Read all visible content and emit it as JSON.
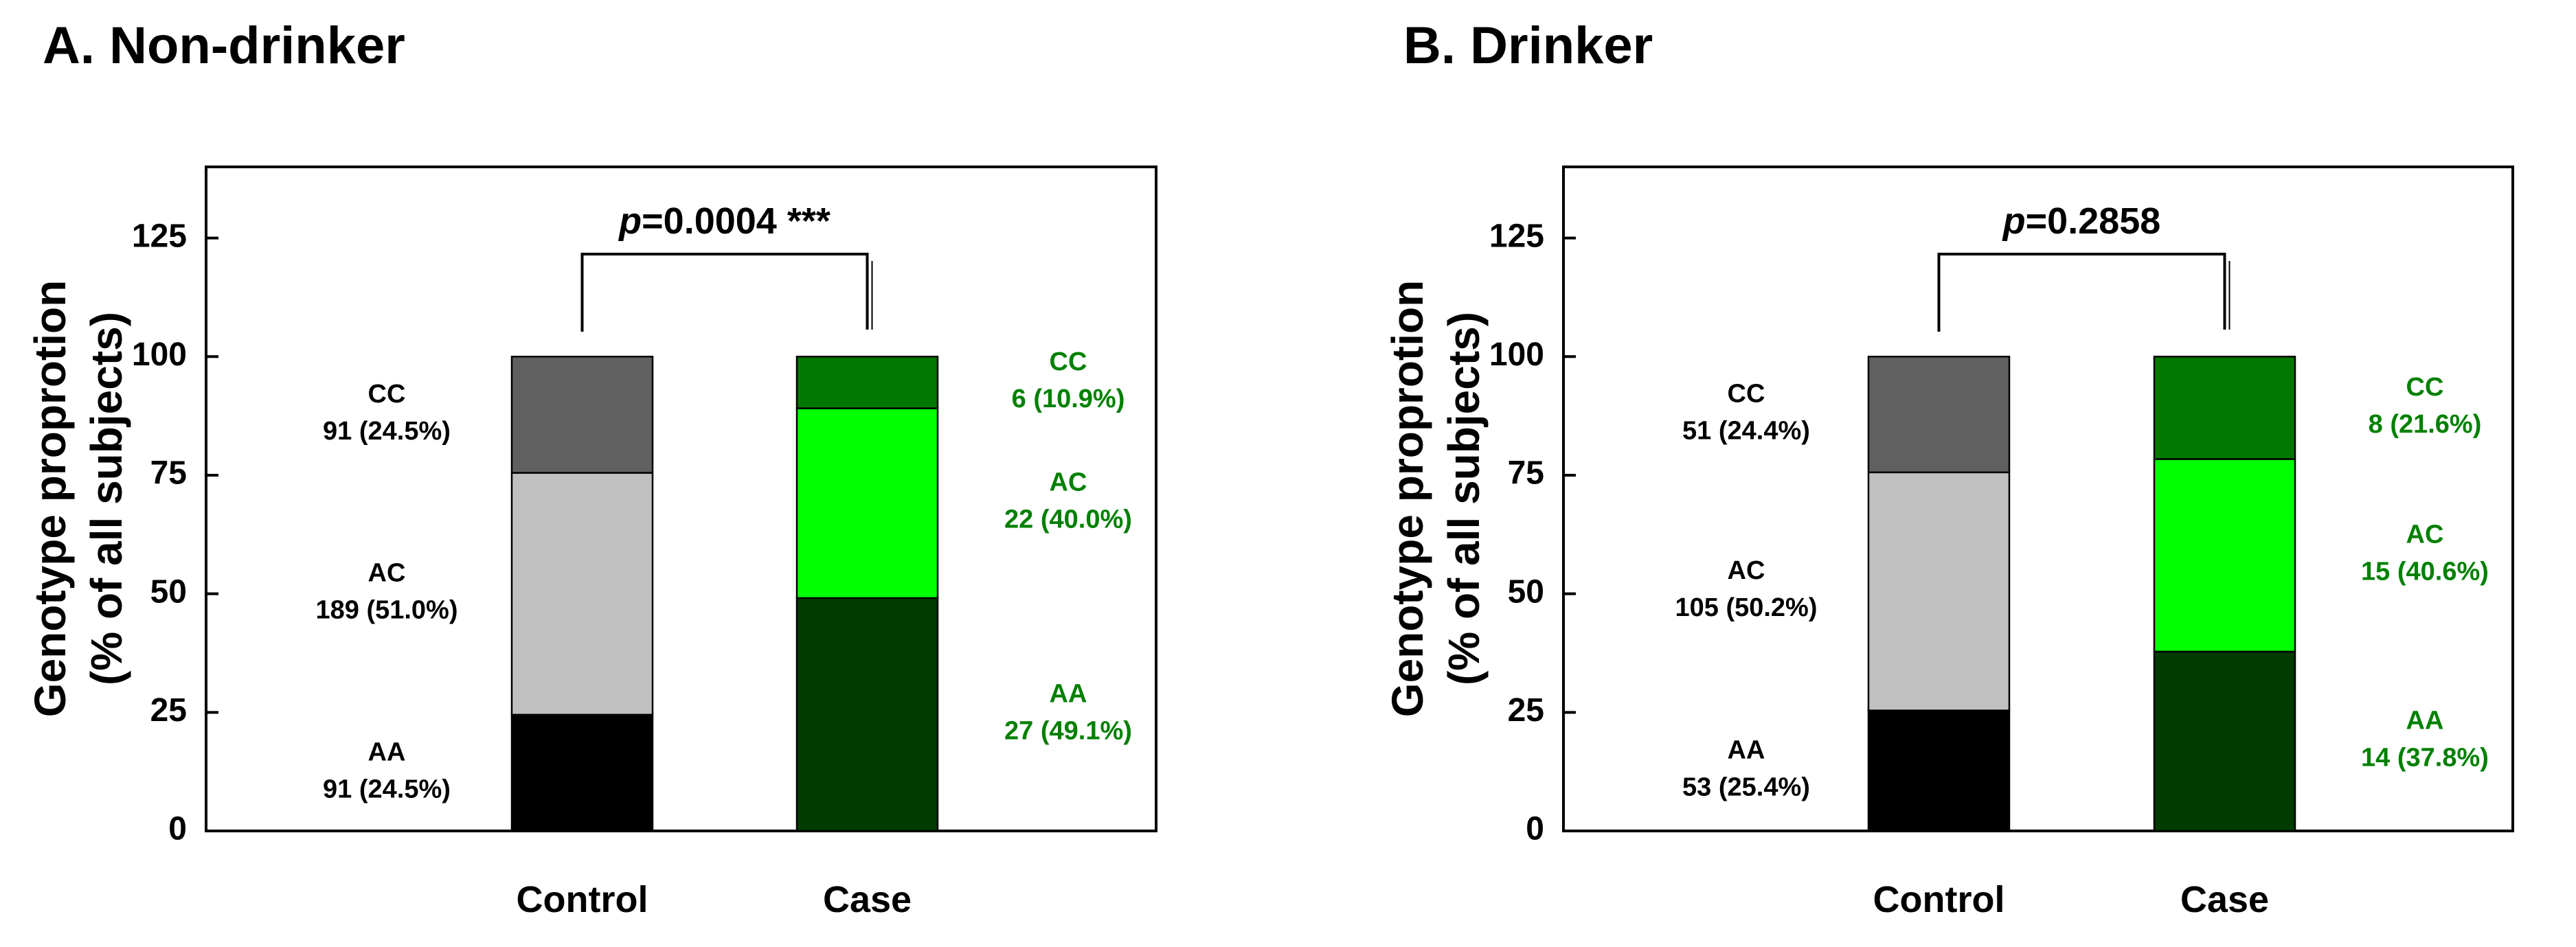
{
  "chart_data": [
    {
      "type": "bar",
      "stacked": true,
      "title": "A. Non-drinker",
      "ylabel_line1": "Genotype proprotion",
      "ylabel_line2": "(% of all subjects)",
      "ylim": [
        0,
        140
      ],
      "yticks": [
        0,
        25,
        50,
        75,
        100,
        125
      ],
      "categories": [
        "Control",
        "Case"
      ],
      "significance": {
        "p_prefix": "p",
        "p_text": "=0.0004 ***"
      },
      "series": [
        {
          "name": "AA",
          "values": [
            24.5,
            49.1
          ],
          "counts": [
            "91 (24.5%)",
            "27 (49.1%)"
          ],
          "colors": [
            "#000000",
            "#003c00"
          ]
        },
        {
          "name": "AC",
          "values": [
            51.0,
            40.0
          ],
          "counts": [
            "189 (51.0%)",
            "22 (40.0%)"
          ],
          "colors": [
            "#c0c0c0",
            "#00ff00"
          ]
        },
        {
          "name": "CC",
          "values": [
            24.5,
            10.9
          ],
          "counts": [
            "91 (24.5%)",
            "6 (10.9%)"
          ],
          "colors": [
            "#606060",
            "#007800"
          ]
        }
      ],
      "label_colors": [
        "#000000",
        "#008000"
      ]
    },
    {
      "type": "bar",
      "stacked": true,
      "title": "B. Drinker",
      "ylabel_line1": "Genotype proprotion",
      "ylabel_line2": "(% of all subjects)",
      "ylim": [
        0,
        140
      ],
      "yticks": [
        0,
        25,
        50,
        75,
        100,
        125
      ],
      "categories": [
        "Control",
        "Case"
      ],
      "significance": {
        "p_prefix": "p",
        "p_text": "=0.2858"
      },
      "series": [
        {
          "name": "AA",
          "values": [
            25.4,
            37.8
          ],
          "counts": [
            "53 (25.4%)",
            "14 (37.8%)"
          ],
          "colors": [
            "#000000",
            "#003c00"
          ]
        },
        {
          "name": "AC",
          "values": [
            50.2,
            40.6
          ],
          "counts": [
            "105 (50.2%)",
            "15 (40.6%)"
          ],
          "colors": [
            "#c0c0c0",
            "#00ff00"
          ]
        },
        {
          "name": "CC",
          "values": [
            24.4,
            21.6
          ],
          "counts": [
            "51 (24.4%)",
            "8 (21.6%)"
          ],
          "colors": [
            "#606060",
            "#007800"
          ]
        }
      ],
      "label_colors": [
        "#000000",
        "#008000"
      ]
    }
  ]
}
